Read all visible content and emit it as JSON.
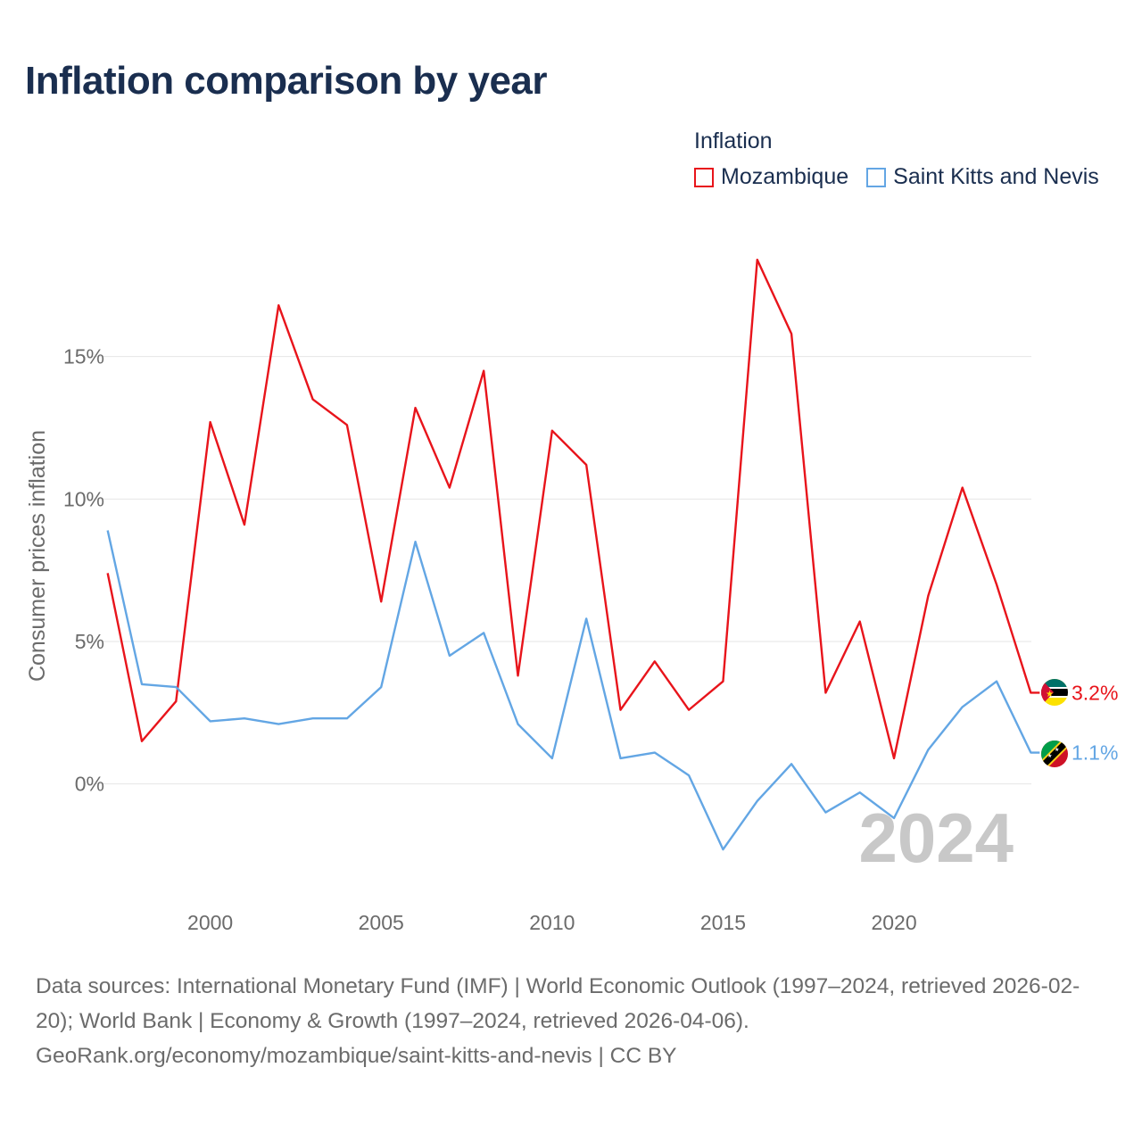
{
  "title": "Inflation comparison by year",
  "legend": {
    "title": "Inflation",
    "items": [
      {
        "label": "Mozambique",
        "color": "#e8141b"
      },
      {
        "label": "Saint Kitts and Nevis",
        "color": "#63a6e4"
      }
    ]
  },
  "watermark_year": "2024",
  "chart_data": {
    "type": "line",
    "title": "Inflation comparison by year",
    "xlabel": "",
    "ylabel": "Consumer prices inflation",
    "x": [
      1997,
      1998,
      1999,
      2000,
      2001,
      2002,
      2003,
      2004,
      2005,
      2006,
      2007,
      2008,
      2009,
      2010,
      2011,
      2012,
      2013,
      2014,
      2015,
      2016,
      2017,
      2018,
      2019,
      2020,
      2021,
      2022,
      2023,
      2024
    ],
    "xlim": [
      1996.8,
      2024.2
    ],
    "ylim": [
      -3.8,
      20
    ],
    "x_ticks": [
      2000,
      2005,
      2010,
      2015,
      2020
    ],
    "x_tick_labels": [
      "2000",
      "2005",
      "2010",
      "2015",
      "2020"
    ],
    "y_ticks": [
      0,
      5,
      10,
      15
    ],
    "y_tick_labels": [
      "0%",
      "5%",
      "10%",
      "15%"
    ],
    "grid": true,
    "series": [
      {
        "name": "Mozambique",
        "color": "#e8141b",
        "end_label": "3.2%",
        "flag_icon": "mozambique-flag-icon",
        "values": [
          7.4,
          1.5,
          2.9,
          12.7,
          9.1,
          16.8,
          13.5,
          12.6,
          6.4,
          13.2,
          10.4,
          14.5,
          3.8,
          12.4,
          11.2,
          2.6,
          4.3,
          2.6,
          3.6,
          18.4,
          15.8,
          3.2,
          5.7,
          0.9,
          6.6,
          10.4,
          7.0,
          3.2
        ]
      },
      {
        "name": "Saint Kitts and Nevis",
        "color": "#63a6e4",
        "end_label": "1.1%",
        "flag_icon": "saint-kitts-and-nevis-flag-icon",
        "values": [
          8.9,
          3.5,
          3.4,
          2.2,
          2.3,
          2.1,
          2.3,
          2.3,
          3.4,
          8.5,
          4.5,
          5.3,
          2.1,
          0.9,
          5.8,
          0.9,
          1.1,
          0.3,
          -2.3,
          -0.6,
          0.7,
          -1.0,
          -0.3,
          -1.2,
          1.2,
          2.7,
          3.6,
          1.1
        ]
      }
    ]
  },
  "source": {
    "line1": "Data sources: International Monetary Fund (IMF) | World Economic Outlook (1997–2024, retrieved 2026-02-20); World Bank | Economy & Growth (1997–2024, retrieved 2026-04-06).",
    "line2": "GeoRank.org/economy/mozambique/saint-kitts-and-nevis | CC BY"
  }
}
